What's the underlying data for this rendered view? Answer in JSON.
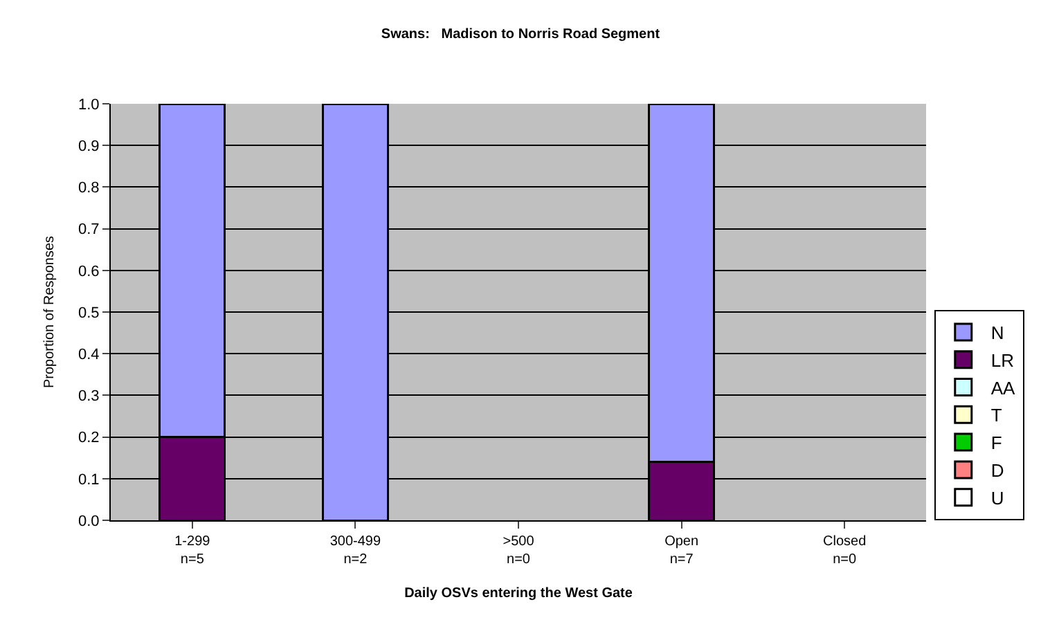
{
  "chart_data": {
    "type": "bar",
    "stacked": true,
    "title": "Swans:   Madison to Norris Road Segment",
    "xlabel": "Daily OSVs entering the West Gate",
    "ylabel": "Proportion of Responses",
    "categories": [
      "1-299\nn=5",
      "300-499\nn=2",
      ">500\nn=0",
      "Open\nn=7",
      "Closed\nn=0"
    ],
    "series": [
      {
        "name": "U",
        "color": "#ffffff",
        "values": [
          null,
          null,
          null,
          null,
          null
        ]
      },
      {
        "name": "D",
        "color": "#ff8080",
        "values": [
          null,
          null,
          null,
          null,
          null
        ]
      },
      {
        "name": "F",
        "color": "#00cc00",
        "values": [
          null,
          null,
          null,
          null,
          null
        ]
      },
      {
        "name": "T",
        "color": "#ffffcc",
        "values": [
          null,
          null,
          null,
          null,
          null
        ]
      },
      {
        "name": "AA",
        "color": "#ccffff",
        "values": [
          null,
          null,
          null,
          null,
          null
        ]
      },
      {
        "name": "LR",
        "color": "#660066",
        "values": [
          0.2,
          null,
          null,
          0.14,
          null
        ]
      },
      {
        "name": "N",
        "color": "#9999ff",
        "values": [
          0.8,
          1.0,
          null,
          0.86,
          null
        ]
      }
    ],
    "ylim": [
      0,
      1
    ],
    "yticks": [
      {
        "value": 0,
        "label": "0.0"
      },
      {
        "value": 0.1,
        "label": "0.1"
      },
      {
        "value": 0.2,
        "label": "0.2"
      },
      {
        "value": 0.3,
        "label": "0.3"
      },
      {
        "value": 0.4,
        "label": "0.4"
      },
      {
        "value": 0.5,
        "label": "0.5"
      },
      {
        "value": 0.6,
        "label": "0.6"
      },
      {
        "value": 0.7,
        "label": "0.7"
      },
      {
        "value": 0.8,
        "label": "0.8"
      },
      {
        "value": 0.9,
        "label": "0.9"
      },
      {
        "value": 1,
        "label": "1.0"
      }
    ],
    "grid": "y",
    "legend": "right"
  }
}
